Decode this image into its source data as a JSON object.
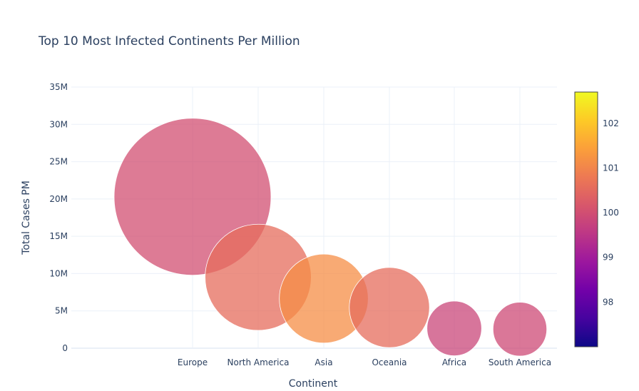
{
  "chart_data": {
    "type": "scatter",
    "title": "Top 10 Most Infected Continents Per Million",
    "xlabel": "Continent",
    "ylabel": "Total Cases PM",
    "categories": [
      "Europe",
      "North America",
      "Asia",
      "Oceania",
      "Africa",
      "South America"
    ],
    "y": [
      20300000,
      9500000,
      6650000,
      5450000,
      2650000,
      2550000
    ],
    "size": [
      30600000,
      14000000,
      9800000,
      8000000,
      3700000,
      3600000
    ],
    "color_value": [
      100.0,
      100.55,
      101.15,
      100.55,
      99.85,
      99.9
    ],
    "ylim": [
      0,
      35000000
    ],
    "y_ticks": [
      {
        "value": 0,
        "label": "0"
      },
      {
        "value": 5000000,
        "label": "5M"
      },
      {
        "value": 10000000,
        "label": "10M"
      },
      {
        "value": 15000000,
        "label": "15M"
      },
      {
        "value": 20000000,
        "label": "20M"
      },
      {
        "value": 25000000,
        "label": "25M"
      },
      {
        "value": 30000000,
        "label": "30M"
      },
      {
        "value": 35000000,
        "label": "35M"
      }
    ],
    "colorbar": {
      "range": [
        97.0,
        102.7
      ],
      "ticks": [
        {
          "value": 98,
          "label": "98"
        },
        {
          "value": 99,
          "label": "99"
        },
        {
          "value": 100,
          "label": "100"
        },
        {
          "value": 101,
          "label": "101"
        },
        {
          "value": 102,
          "label": "102"
        }
      ],
      "colors": [
        "#0d0887",
        "#46039f",
        "#7201a8",
        "#9c179e",
        "#bd3786",
        "#d8576b",
        "#ed7953",
        "#fb9f3a",
        "#fdca26",
        "#f0f921"
      ]
    },
    "grid": true,
    "background": "#ffffff",
    "grid_color": "#ebf0f8",
    "text_color": "#2a3f5f",
    "marker_opacity": 0.75
  }
}
